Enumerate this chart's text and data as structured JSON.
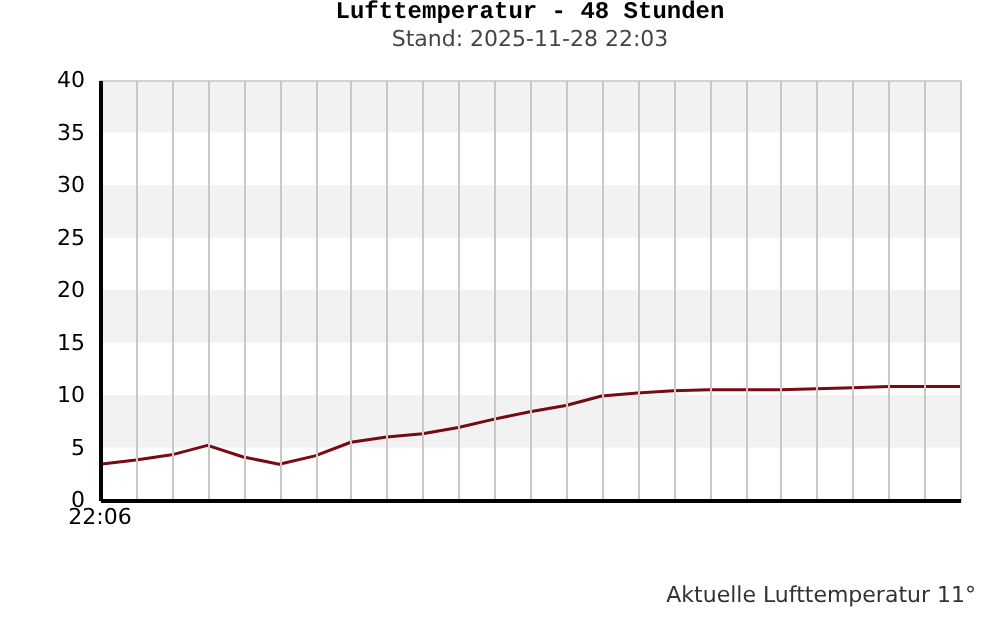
{
  "chart_data": {
    "type": "line",
    "title": "Lufttemperatur - 48 Stunden",
    "subtitle": "Stand: 2025-11-28 22:03",
    "categories": [
      null,
      null,
      null,
      null,
      null,
      null,
      null,
      null,
      null,
      null,
      null,
      null,
      null,
      null,
      null,
      null,
      null,
      null,
      null,
      null,
      null,
      null,
      null,
      null,
      null
    ],
    "series": [
      {
        "color": "#7a0a14",
        "values": [
          3.4,
          3.8,
          4.3,
          5.2,
          4.1,
          3.4,
          4.2,
          5.5,
          6.0,
          6.3,
          6.9,
          7.7,
          8.4,
          9.0,
          9.9,
          10.2,
          10.4,
          10.5,
          10.5,
          10.5,
          10.6,
          10.7,
          10.8,
          10.8,
          10.8
        ]
      }
    ],
    "ylim": [
      0,
      40
    ],
    "yticks": [
      0,
      5,
      10,
      15,
      20,
      25,
      30,
      35,
      40
    ],
    "bands": [
      {
        "axis": "y",
        "from": 5,
        "to": 10,
        "color": "#f2f2f2"
      },
      {
        "axis": "y",
        "from": 15,
        "to": 20,
        "color": "#f2f2f2"
      },
      {
        "axis": "y",
        "from": 25,
        "to": 30,
        "color": "#f2f2f2"
      },
      {
        "axis": "y",
        "from": 35,
        "to": 40,
        "color": "#f2f2f2"
      }
    ],
    "grid": "x",
    "marker": "none",
    "line_style": "solid",
    "annotations": [
      "22:06",
      "Aktuelle Lufttemperatur 11°"
    ]
  }
}
